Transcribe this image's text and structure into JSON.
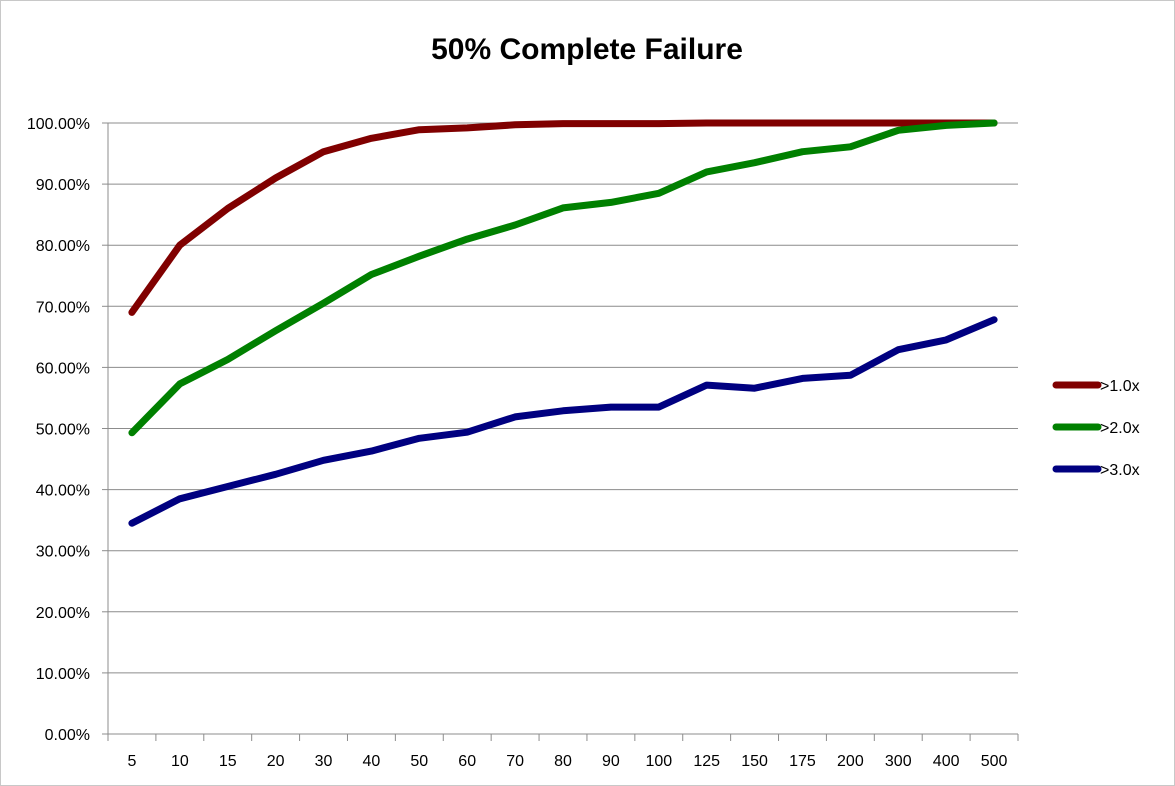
{
  "chart_data": {
    "type": "line",
    "title": "50% Complete Failure",
    "xlabel": "",
    "ylabel": "",
    "categories": [
      "5",
      "10",
      "15",
      "20",
      "30",
      "40",
      "50",
      "60",
      "70",
      "80",
      "90",
      "100",
      "125",
      "150",
      "175",
      "200",
      "300",
      "400",
      "500"
    ],
    "ylim": [
      0,
      100
    ],
    "y_ticks": [
      "0.00%",
      "10.00%",
      "20.00%",
      "30.00%",
      "40.00%",
      "50.00%",
      "60.00%",
      "70.00%",
      "80.00%",
      "90.00%",
      "100.00%"
    ],
    "grid": true,
    "legend_position": "right",
    "series": [
      {
        "name": ">1.0x",
        "color": "#800000",
        "values": [
          69,
          80,
          86,
          91,
          95.3,
          97.5,
          98.9,
          99.2,
          99.7,
          99.9,
          99.9,
          99.9,
          100,
          100,
          100,
          100,
          100,
          100,
          100
        ]
      },
      {
        "name": ">2.0x",
        "color": "#008000",
        "values": [
          49.3,
          57.3,
          61.3,
          66,
          70.5,
          75.2,
          78.2,
          81,
          83.3,
          86.1,
          87,
          88.5,
          92,
          93.5,
          95.3,
          96.1,
          98.8,
          99.6,
          100
        ]
      },
      {
        "name": ">3.0x",
        "color": "#000080",
        "values": [
          34.5,
          38.5,
          40.5,
          42.5,
          44.8,
          46.3,
          48.4,
          49.4,
          51.9,
          52.9,
          53.5,
          53.5,
          57.1,
          56.6,
          58.2,
          58.7,
          62.9,
          64.5,
          67.8
        ]
      }
    ]
  }
}
